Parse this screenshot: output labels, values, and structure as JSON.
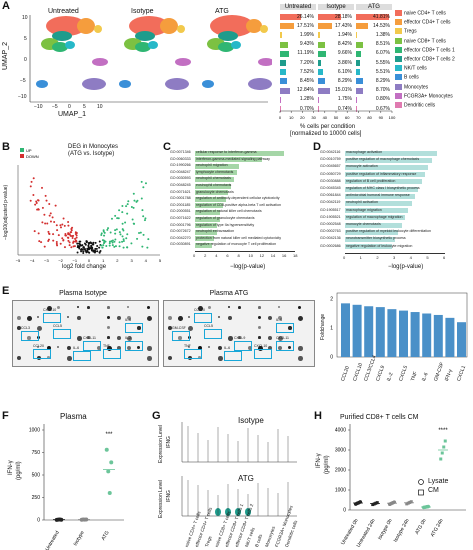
{
  "panels": {
    "A": "A",
    "B": "B",
    "C": "C",
    "D": "D",
    "E": "E",
    "F": "F",
    "G": "G",
    "H": "H"
  },
  "panelA": {
    "umap_titles": [
      "Untreated",
      "Isotype",
      "ATG"
    ],
    "xlabel": "UMAP_1",
    "ylabel": "UMAP_2",
    "yticks": [
      "10",
      "5",
      "0",
      "−5",
      "−10"
    ],
    "xticks": [
      "−10",
      "−5",
      "0",
      "5",
      "10"
    ],
    "table_headers": [
      "Untreated",
      "Isotype",
      "ATG"
    ],
    "untreated_pct": [
      "26.14%",
      "17.51%",
      "1.99%",
      "9.43%",
      "11.19%",
      "7.20%",
      "7.52%",
      "8.45%",
      "12.84%",
      "1.28%",
      "0.70%"
    ],
    "isotype_pct": [
      "28.18%",
      "17.43%",
      "1.94%",
      "8.42%",
      "9.66%",
      "3.86%",
      "6.10%",
      "8.29%",
      "15.01%",
      "1.75%",
      "0.74%"
    ],
    "atg_pct": [
      "41.81%",
      "14.53%",
      "1.38%",
      "8.51%",
      "6.07%",
      "5.55%",
      "5.51%",
      "8.29%",
      "8.70%",
      "0.80%",
      "0.67%"
    ],
    "atg_values": [
      41.81,
      14.53,
      1.38,
      8.51,
      6.07,
      5.55,
      5.51,
      8.29,
      8.7,
      0.8,
      0.67
    ],
    "legend": [
      "naive CD4+ T cells",
      "effector CD4+ T cells",
      "Tregs",
      "naive CD8+ T cells",
      "effector CD8+ T cells 1",
      "effector CD8+ T cells 2",
      "NK/T cells",
      "B cells",
      "Monocytes",
      "FCGR3A+ Monocytes",
      "Dendritic cells"
    ],
    "legend_colors": [
      "#f26d5b",
      "#f59d3d",
      "#f2c94c",
      "#7cc142",
      "#2fb673",
      "#1e9c8c",
      "#27b8c8",
      "#3a8fd8",
      "#8e7cc3",
      "#c26fc2",
      "#e07ab0"
    ],
    "axis_ticks": [
      "0",
      "10",
      "20",
      "30",
      "40",
      "50",
      "60",
      "70",
      "80",
      "90",
      "100"
    ],
    "footer1": "% cells per condition",
    "footer2": "[normalized to 10000 cells]"
  },
  "panelB": {
    "title1": "DEG in Monocytes",
    "title2": "(ATG vs. Isotype)",
    "legend_up": "UP",
    "legend_down": "DOWN",
    "xlabel": "log2 fold change",
    "ylabel": "−log10(adjusted p-value)",
    "xticks": [
      "−5",
      "−4",
      "−3",
      "−2",
      "−1",
      "0",
      "1",
      "2",
      "3",
      "4",
      "5"
    ]
  },
  "panelC": {
    "rows": [
      "GO:0071346",
      "GO:0060333",
      "GO:1990266",
      "GO:0048247",
      "GO:0030593",
      "GO:0048245",
      "GO:0071621",
      "GO:0001788",
      "GO:2001185",
      "GO:2000551",
      "GO:0071622",
      "GO:0001796",
      "GO:0072672",
      "GO:0042270",
      "GO:0030891"
    ],
    "descs": [
      "cellular response to interferon-gamma",
      "interferon-gamma-mediated signaling pathway",
      "neutrophil migration",
      "lymphocyte chemotaxis",
      "neutrophil chemotaxis",
      "eosinophil chemotaxis",
      "granulocyte chemotaxis",
      "regulation of antibody-dependent cellular cytotoxicity",
      "regulation of CD8-positive alpha-beta T cell activation",
      "regulation of natural killer cell chemotaxis",
      "regulation of granulocyte chemotaxis",
      "regulation of type IIa hypersensitivity",
      "neutrophil extravasation",
      "protection from natural killer cell mediated cytotoxicity",
      "negative regulation of monocyte T cell proliferation"
    ],
    "values": [
      16,
      12,
      8,
      7.5,
      7,
      6.5,
      6,
      5.5,
      5,
      4.5,
      4.5,
      4,
      4,
      3.5,
      3
    ],
    "xticks": [
      "0",
      "2",
      "4",
      "6",
      "8",
      "10",
      "12",
      "14",
      "16",
      "18"
    ],
    "xlabel": "−log(p-value)"
  },
  "panelD": {
    "rows": [
      "GO:0042116",
      "GO:0010759",
      "GO:0045657",
      "GO:0050729",
      "GO:0030888",
      "GO:0045345",
      "GO:0061844",
      "GO:0042119",
      "GO:1905517",
      "GO:1905521",
      "GO:0002548",
      "GO:0002763",
      "GO:0042136",
      "GO:0002686"
    ],
    "descs": [
      "macrophage activation",
      "positive regulation of macrophage chemotaxis",
      "monocyte activation",
      "positive regulation of inflammatory response",
      "regulation of B cell proliferation",
      "regulation of MHC class I biosynthetic process",
      "antimicrobial humoral immune response",
      "neutrophil activation",
      "macrophage migration",
      "regulation of macrophage migration",
      "monocyte chemotaxis",
      "positive regulation of myeloid leukocyte differentiation",
      "neurotransmitter biosynthetic process",
      "negative regulation of leukocyte migration"
    ],
    "values": [
      5.5,
      5.2,
      5,
      4.8,
      4.6,
      4.4,
      4.2,
      4,
      3.8,
      3.6,
      3.4,
      3.2,
      3,
      2.8
    ],
    "xticks": [
      "0",
      "1",
      "2",
      "3",
      "4",
      "5",
      "6"
    ],
    "xlabel": "−log(p-value)"
  },
  "panelE": {
    "title_iso": "Plasma Isotype",
    "title_atg": "Plasma ATG",
    "iso_labels": [
      "CXCL10",
      "CCL3",
      "CCL5",
      "IL-8",
      "CXCL11",
      "TNF",
      "IL-2",
      "IL-6",
      "CCL20"
    ],
    "atg_labels": [
      "CCL20",
      "GM-CSF",
      "CCL5",
      "IL-8",
      "CXCL9",
      "CXCL10",
      "CXCL11",
      "IL-6",
      "TNF"
    ],
    "bar_categories": [
      "CCL20",
      "CXCL10",
      "CCL3/CCL4",
      "CXCL9",
      "IL-2",
      "CXCL5",
      "TNF",
      "IL-6",
      "GM-CSF",
      "IFN-γ",
      "CXCL1"
    ],
    "bar_values": [
      1.85,
      1.8,
      1.75,
      1.72,
      1.65,
      1.6,
      1.55,
      1.5,
      1.45,
      1.35,
      1.2
    ],
    "ylabel": "Foldchange",
    "yticks": [
      "0",
      "1",
      "2"
    ]
  },
  "panelF": {
    "title": "Plasma",
    "ylabel": "IFN-γ",
    "yunit": "(pg/ml)",
    "yticks": [
      "0",
      "250",
      "500",
      "750",
      "1000"
    ],
    "groups": [
      "Untreated",
      "Isotype",
      "ATG"
    ],
    "means": [
      5,
      5,
      560
    ],
    "points": [
      [
        2,
        4,
        6,
        3
      ],
      [
        3,
        5,
        4,
        6
      ],
      [
        780,
        540,
        300,
        640
      ]
    ],
    "sig": "***"
  },
  "panelG": {
    "title_top": "Isotype",
    "title_bottom": "ATG",
    "ylabel": "Expression Level",
    "gene": "IFNG",
    "cell_types": [
      "naive CD4+ T cells",
      "effector CD4+ T cells",
      "Tregs",
      "naive CD8+ T cells",
      "effector CD8+ T cells 1",
      "effector CD8+ T cells 2",
      "NK/T cells",
      "B cells",
      "Monocytes",
      "FCGR3A+ Monocytes",
      "Dendritic cells"
    ]
  },
  "panelH": {
    "title": "Purified CD8+ T cells CM",
    "ylabel": "IFN-γ",
    "yunit": "(pg/ml)",
    "yticks": [
      "0",
      "1000",
      "2000",
      "3000",
      "4000"
    ],
    "groups": [
      "Untreated 0h",
      "Untreated 24h",
      "Isotype 0h",
      "Isotype 24h",
      "ATG 0h",
      "ATG 24h"
    ],
    "means": [
      350,
      320,
      340,
      360,
      150,
      3000
    ],
    "legend_lysate": "Lysate",
    "legend_cm": "CM",
    "sig": "****"
  }
}
